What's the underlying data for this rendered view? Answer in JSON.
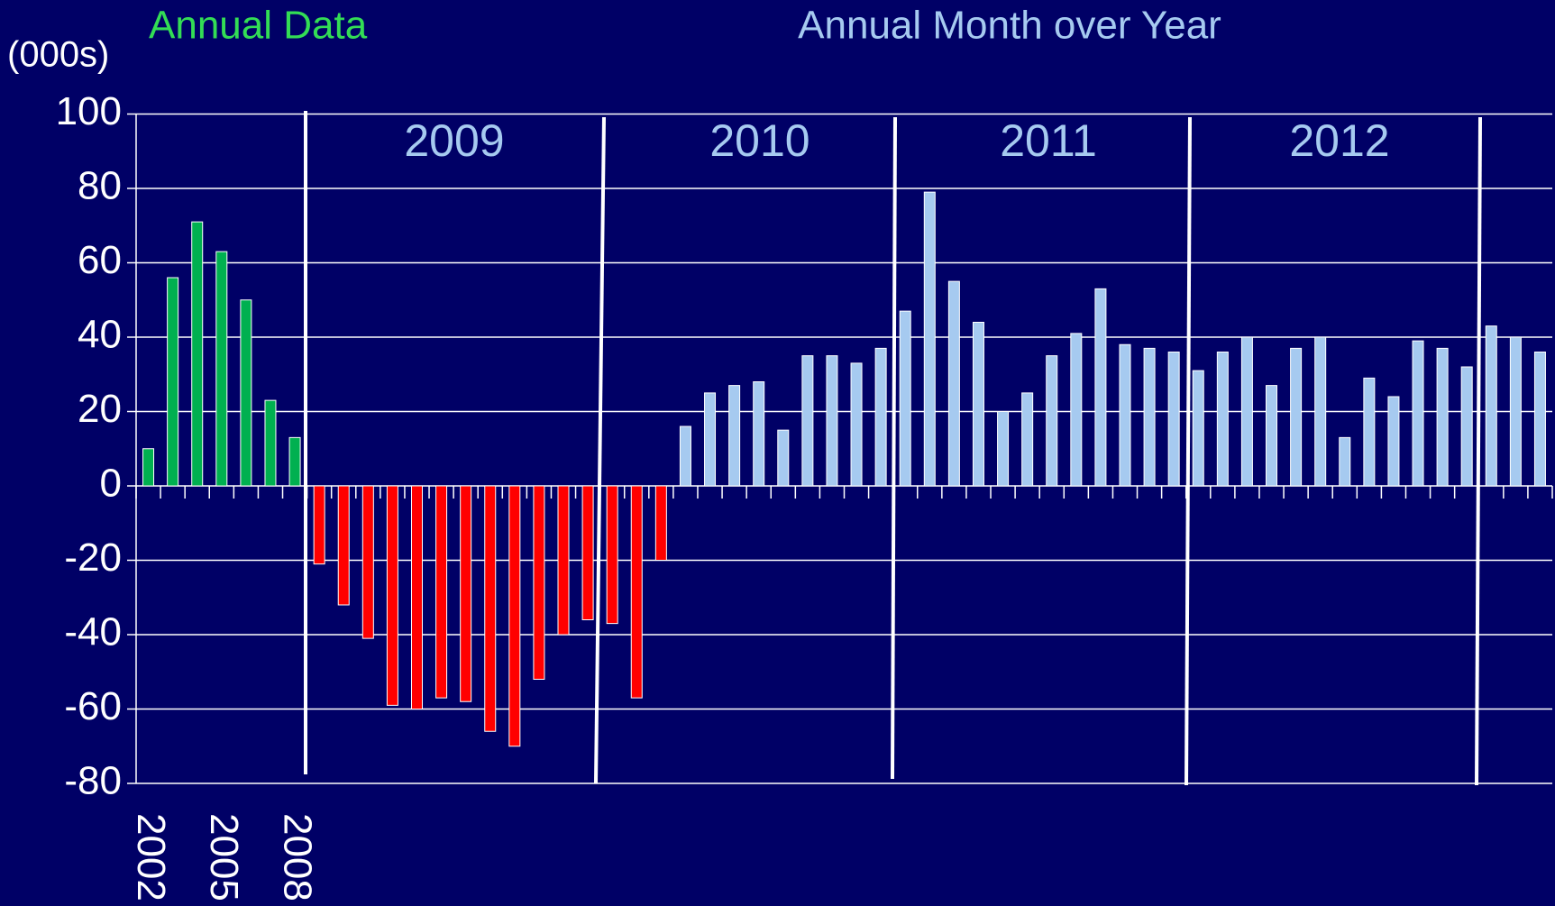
{
  "chart_data": {
    "type": "bar",
    "title": "Annual Data",
    "subtitle": "Annual Month over Year",
    "y_label": "(000s)",
    "annotations": [
      "2009",
      "2010",
      "2011",
      "2012"
    ],
    "categories": [
      "2002",
      null,
      null,
      "2005",
      null,
      null,
      "2008",
      null,
      null,
      null,
      null,
      null,
      null,
      null,
      null,
      null,
      null,
      null,
      null,
      null,
      null,
      null,
      null,
      null,
      null,
      null,
      null,
      null,
      null,
      null,
      null,
      null,
      null,
      null,
      null,
      null,
      null,
      null,
      null,
      null,
      null,
      null,
      null,
      null,
      null,
      null,
      null,
      null,
      null,
      null,
      null,
      null,
      null,
      null,
      null,
      null,
      null,
      null
    ],
    "values": [
      10,
      56,
      71,
      63,
      50,
      23,
      13,
      -21,
      -32,
      -41,
      -59,
      -60,
      -57,
      -58,
      -66,
      -70,
      -52,
      -40,
      -36,
      -37,
      -57,
      -20,
      16,
      25,
      27,
      28,
      15,
      35,
      35,
      33,
      37,
      47,
      79,
      55,
      44,
      20,
      25,
      35,
      41,
      53,
      38,
      37,
      36,
      31,
      36,
      40,
      27,
      37,
      40,
      13,
      29,
      24,
      39,
      37,
      32,
      43,
      40,
      36
    ],
    "colors": [
      "#00b050",
      "#00b050",
      "#00b050",
      "#00b050",
      "#00b050",
      "#00b050",
      "#00b050",
      "#ff0000",
      "#ff0000",
      "#ff0000",
      "#ff0000",
      "#ff0000",
      "#ff0000",
      "#ff0000",
      "#ff0000",
      "#ff0000",
      "#ff0000",
      "#ff0000",
      "#ff0000",
      "#ff0000",
      "#ff0000",
      "#ff0000",
      "#a6caf0",
      "#a6caf0",
      "#a6caf0",
      "#a6caf0",
      "#a6caf0",
      "#a6caf0",
      "#a6caf0",
      "#a6caf0",
      "#a6caf0",
      "#a6caf0",
      "#a6caf0",
      "#a6caf0",
      "#a6caf0",
      "#a6caf0",
      "#a6caf0",
      "#a6caf0",
      "#a6caf0",
      "#a6caf0",
      "#a6caf0",
      "#a6caf0",
      "#a6caf0",
      "#a6caf0",
      "#a6caf0",
      "#a6caf0",
      "#a6caf0",
      "#a6caf0",
      "#a6caf0",
      "#a6caf0",
      "#a6caf0",
      "#a6caf0",
      "#a6caf0",
      "#a6caf0",
      "#a6caf0",
      "#a6caf0",
      "#a6caf0",
      "#a6caf0"
    ],
    "ylim": [
      -80,
      100
    ],
    "yticks": [
      -80,
      -60,
      -40,
      -20,
      0,
      20,
      40,
      60,
      80,
      100
    ],
    "grid": true
  }
}
